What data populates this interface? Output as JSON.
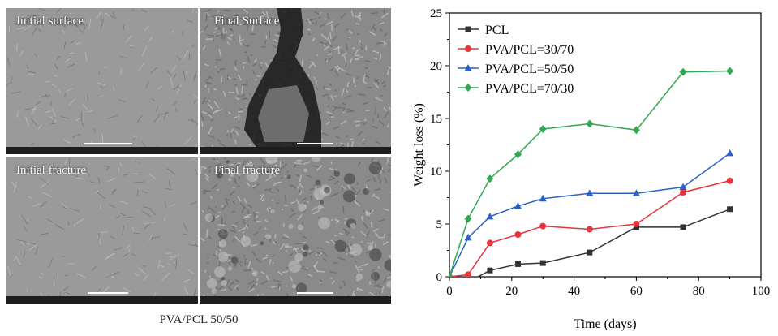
{
  "figure": {
    "panels": [
      {
        "label": "Initial surface",
        "texture": "smooth"
      },
      {
        "label": "Final Surface",
        "texture": "crack"
      },
      {
        "label": "Initial fracture",
        "texture": "smooth"
      },
      {
        "label": "Final fracture",
        "texture": "rough"
      }
    ],
    "caption": "PVA/PCL 50/50"
  },
  "chart_data": {
    "type": "line",
    "xlabel": "Time (days)",
    "ylabel": "Weight loss (%)",
    "xlim": [
      0,
      100
    ],
    "ylim": [
      0,
      25
    ],
    "xticks": [
      0,
      20,
      40,
      60,
      80,
      100
    ],
    "yticks": [
      0,
      5,
      10,
      15,
      20,
      25
    ],
    "grid": false,
    "legend_position": "top-left",
    "series": [
      {
        "name": "PCL",
        "color": "#333333",
        "marker": "square",
        "x": [
          0,
          6,
          13,
          22,
          30,
          45,
          60,
          75,
          90
        ],
        "y": [
          -0.3,
          -0.5,
          0.6,
          1.2,
          1.3,
          2.3,
          4.7,
          4.7,
          6.4
        ]
      },
      {
        "name": "PVA/PCL=30/70",
        "color": "#e8333a",
        "marker": "circle",
        "x": [
          0,
          6,
          13,
          22,
          30,
          45,
          60,
          75,
          90
        ],
        "y": [
          0,
          0.2,
          3.2,
          4.0,
          4.8,
          4.5,
          5.0,
          8.0,
          9.1
        ]
      },
      {
        "name": "PVA/PCL=50/50",
        "color": "#2b62c6",
        "marker": "triangle",
        "x": [
          0,
          6,
          13,
          22,
          30,
          45,
          60,
          75,
          90
        ],
        "y": [
          0,
          3.7,
          5.7,
          6.7,
          7.4,
          7.9,
          7.9,
          8.5,
          11.7
        ]
      },
      {
        "name": "PVA/PCL=70/30",
        "color": "#2fa84f",
        "marker": "diamond",
        "x": [
          0,
          6,
          13,
          22,
          30,
          45,
          60,
          75,
          90
        ],
        "y": [
          0,
          5.5,
          9.3,
          11.6,
          14.0,
          14.5,
          13.9,
          19.4,
          19.5
        ]
      }
    ]
  }
}
